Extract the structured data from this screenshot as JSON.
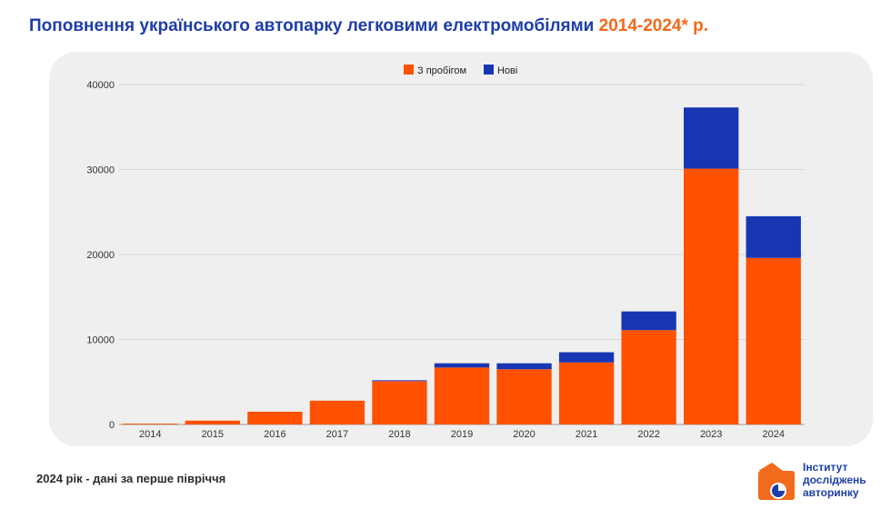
{
  "title": {
    "main": "Поповнення українського автопарку легковими електромобілями",
    "accent": "2014-2024* р."
  },
  "footnote": "2024 рік - дані за перше півріччя",
  "logo": {
    "line1": "Інститут",
    "line2": "досліджень",
    "line3": "авторинку"
  },
  "colors": {
    "used": "#ff5100",
    "new": "#1836b2",
    "title": "#1e3ea8",
    "accent": "#f26a1b"
  },
  "chart_data": {
    "type": "bar",
    "stacked": true,
    "title": "Поповнення українського автопарку легковими електромобілями 2014-2024* р.",
    "xlabel": "",
    "ylabel": "",
    "ylim": [
      0,
      40000
    ],
    "yticks": [
      0,
      10000,
      20000,
      30000,
      40000
    ],
    "grid": true,
    "legend": "top-center",
    "categories": [
      "2014",
      "2015",
      "2016",
      "2017",
      "2018",
      "2019",
      "2020",
      "2021",
      "2022",
      "2023",
      "2024"
    ],
    "series": [
      {
        "name": "З пробігом",
        "color": "#ff5100",
        "values": [
          100,
          450,
          1500,
          2800,
          5100,
          6700,
          6500,
          7300,
          11100,
          30100,
          19600
        ]
      },
      {
        "name": "Нові",
        "color": "#1836b2",
        "values": [
          0,
          0,
          0,
          0,
          100,
          500,
          700,
          1200,
          2200,
          7200,
          4900
        ]
      }
    ]
  }
}
